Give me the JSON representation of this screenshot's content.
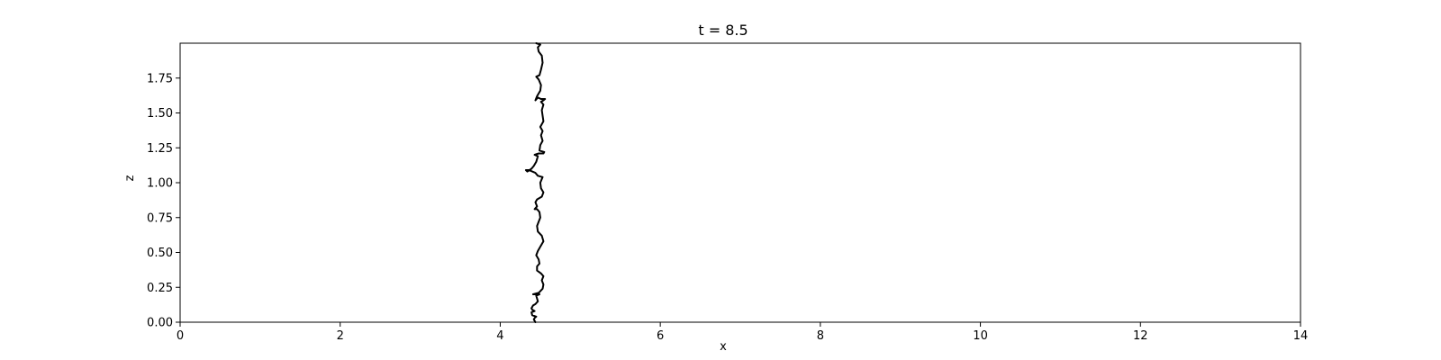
{
  "chart_data": {
    "type": "line",
    "title": "t = 8.5",
    "xlabel": "x",
    "ylabel": "z",
    "xlim": [
      0,
      14
    ],
    "ylim": [
      0,
      2
    ],
    "grid": false,
    "x_ticks": [
      0,
      2,
      4,
      6,
      8,
      10,
      12,
      14
    ],
    "x_tick_labels": [
      "0",
      "2",
      "4",
      "6",
      "8",
      "10",
      "12",
      "14"
    ],
    "y_ticks": [
      0.0,
      0.25,
      0.5,
      0.75,
      1.0,
      1.25,
      1.5,
      1.75
    ],
    "y_tick_labels": [
      "0.00",
      "0.25",
      "0.50",
      "0.75",
      "1.00",
      "1.25",
      "1.50",
      "1.75"
    ],
    "series": [
      {
        "color": "#000000",
        "points": [
          [
            4.44,
            0.0
          ],
          [
            4.42,
            0.02
          ],
          [
            4.43,
            0.03
          ],
          [
            4.45,
            0.04
          ],
          [
            4.4,
            0.05
          ],
          [
            4.39,
            0.07
          ],
          [
            4.43,
            0.08
          ],
          [
            4.4,
            0.09
          ],
          [
            4.39,
            0.1
          ],
          [
            4.41,
            0.12
          ],
          [
            4.44,
            0.13
          ],
          [
            4.47,
            0.15
          ],
          [
            4.46,
            0.17
          ],
          [
            4.45,
            0.19
          ],
          [
            4.49,
            0.2
          ],
          [
            4.41,
            0.2
          ],
          [
            4.48,
            0.21
          ],
          [
            4.53,
            0.24
          ],
          [
            4.54,
            0.27
          ],
          [
            4.52,
            0.3
          ],
          [
            4.54,
            0.33
          ],
          [
            4.51,
            0.35
          ],
          [
            4.46,
            0.37
          ],
          [
            4.46,
            0.4
          ],
          [
            4.49,
            0.42
          ],
          [
            4.48,
            0.45
          ],
          [
            4.45,
            0.48
          ],
          [
            4.47,
            0.51
          ],
          [
            4.51,
            0.55
          ],
          [
            4.54,
            0.58
          ],
          [
            4.52,
            0.62
          ],
          [
            4.47,
            0.65
          ],
          [
            4.46,
            0.69
          ],
          [
            4.48,
            0.72
          ],
          [
            4.5,
            0.75
          ],
          [
            4.49,
            0.79
          ],
          [
            4.46,
            0.81
          ],
          [
            4.43,
            0.81
          ],
          [
            4.46,
            0.83
          ],
          [
            4.44,
            0.86
          ],
          [
            4.46,
            0.88
          ],
          [
            4.52,
            0.9
          ],
          [
            4.54,
            0.93
          ],
          [
            4.51,
            0.96
          ],
          [
            4.5,
            1.0
          ],
          [
            4.53,
            1.04
          ],
          [
            4.47,
            1.05
          ],
          [
            4.44,
            1.07
          ],
          [
            4.36,
            1.09
          ],
          [
            4.32,
            1.09
          ],
          [
            4.34,
            1.08
          ],
          [
            4.39,
            1.1
          ],
          [
            4.42,
            1.12
          ],
          [
            4.45,
            1.15
          ],
          [
            4.47,
            1.19
          ],
          [
            4.43,
            1.2
          ],
          [
            4.48,
            1.21
          ],
          [
            4.54,
            1.21
          ],
          [
            4.55,
            1.22
          ],
          [
            4.49,
            1.23
          ],
          [
            4.5,
            1.27
          ],
          [
            4.53,
            1.3
          ],
          [
            4.51,
            1.34
          ],
          [
            4.53,
            1.37
          ],
          [
            4.5,
            1.4
          ],
          [
            4.54,
            1.44
          ],
          [
            4.53,
            1.48
          ],
          [
            4.52,
            1.52
          ],
          [
            4.54,
            1.56
          ],
          [
            4.51,
            1.58
          ],
          [
            4.54,
            1.59
          ],
          [
            4.56,
            1.6
          ],
          [
            4.51,
            1.6
          ],
          [
            4.47,
            1.61
          ],
          [
            4.44,
            1.59
          ],
          [
            4.46,
            1.62
          ],
          [
            4.5,
            1.66
          ],
          [
            4.51,
            1.7
          ],
          [
            4.48,
            1.74
          ],
          [
            4.45,
            1.76
          ],
          [
            4.49,
            1.77
          ],
          [
            4.51,
            1.81
          ],
          [
            4.53,
            1.86
          ],
          [
            4.52,
            1.91
          ],
          [
            4.48,
            1.94
          ],
          [
            4.47,
            1.97
          ],
          [
            4.5,
            1.99
          ],
          [
            4.45,
            2.0
          ]
        ]
      }
    ]
  }
}
